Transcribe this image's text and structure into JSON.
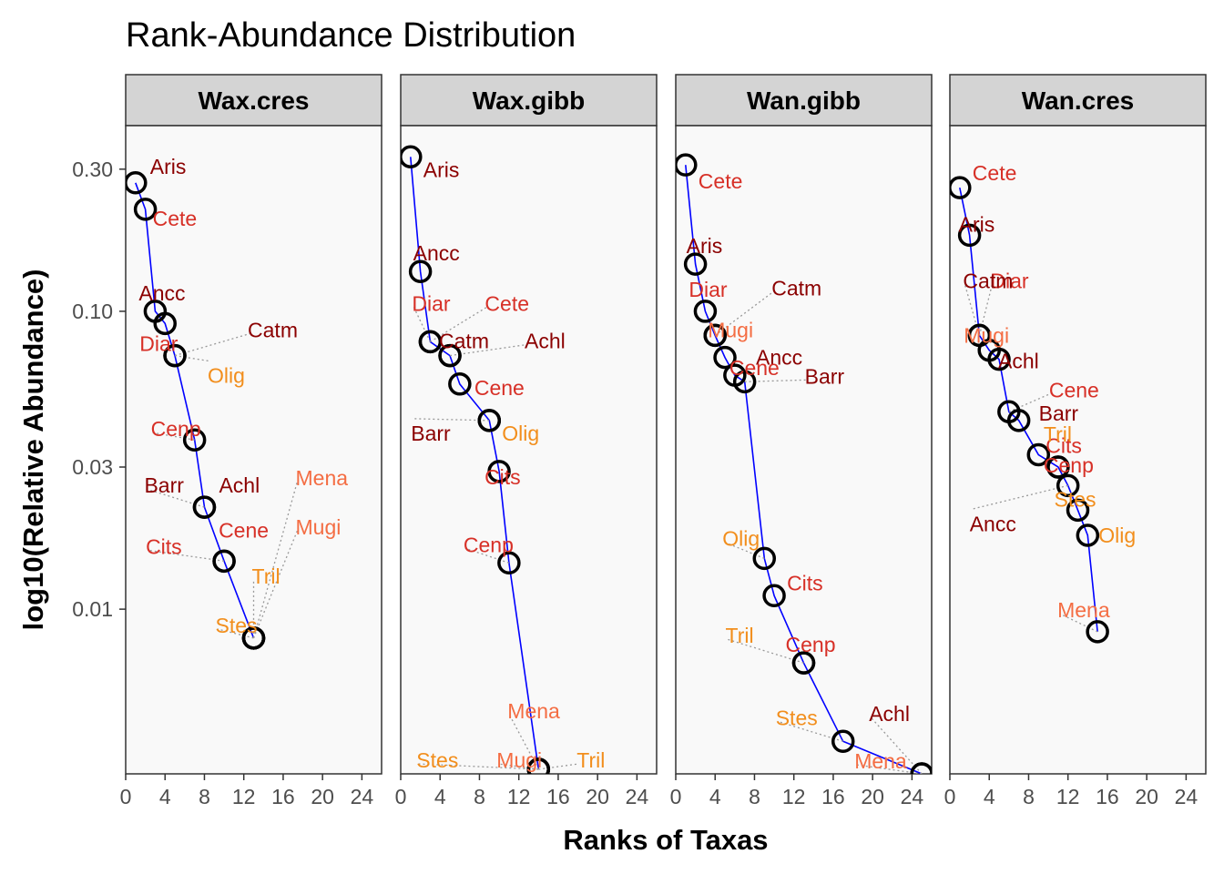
{
  "chart_data": {
    "type": "line",
    "title": "Rank-Abundance Distribution",
    "xlabel": "Ranks of Taxas",
    "ylabel": "log10(Relative Abundance)",
    "x_scale": "linear",
    "y_scale": "log10",
    "xlim": [
      0,
      26
    ],
    "ylim": [
      0.0028,
      0.42
    ],
    "x_ticks": [
      0,
      4,
      8,
      12,
      16,
      20,
      24
    ],
    "x_tick_labels": [
      "0",
      "4",
      "8",
      "12",
      "16",
      "20",
      "24"
    ],
    "y_ticks": [
      0.01,
      0.03,
      0.1,
      0.3
    ],
    "y_tick_labels": [
      "0.01",
      "0.03",
      "0.10",
      "0.30"
    ],
    "line_color": "#0000ff",
    "panel_background": "#f9f9f9",
    "strip_background": "#d4d4d4",
    "marker": "open-circle",
    "legend": "none",
    "label_colors": {
      "Aris": "#8b0000",
      "Ancc": "#8b0000",
      "Barr": "#8b0000",
      "Achl": "#8b0000",
      "Catm": "#8b0000",
      "Cete": "#d73027",
      "Diar": "#d73027",
      "Cene": "#d73027",
      "Cenp": "#d73027",
      "Cits": "#d73027",
      "Mena": "#f46d43",
      "Mugi": "#f46d43",
      "Olig": "#f28e1c",
      "Tril": "#f28e1c",
      "Stes": "#f28e1c"
    },
    "facets": [
      {
        "name": "Wax.cres",
        "points": [
          {
            "label": "Aris",
            "rank": 1,
            "abundance": 0.27
          },
          {
            "label": "Cete",
            "rank": 2,
            "abundance": 0.22
          },
          {
            "label": "Ancc",
            "rank": 3,
            "abundance": 0.1
          },
          {
            "label": "Diar",
            "rank": 4,
            "abundance": 0.091
          },
          {
            "label": "Catm",
            "rank": 5,
            "abundance": 0.071
          },
          {
            "label": "Olig",
            "rank": 5,
            "abundance": 0.071
          },
          {
            "label": "Cenp",
            "rank": 7,
            "abundance": 0.037
          },
          {
            "label": "Barr",
            "rank": 8,
            "abundance": 0.022
          },
          {
            "label": "Achl",
            "rank": 8,
            "abundance": 0.022
          },
          {
            "label": "Cits",
            "rank": 10,
            "abundance": 0.0145
          },
          {
            "label": "Cene",
            "rank": 10,
            "abundance": 0.0145
          },
          {
            "label": "Mena",
            "rank": 13,
            "abundance": 0.008
          },
          {
            "label": "Mugi",
            "rank": 13,
            "abundance": 0.008
          },
          {
            "label": "Tril",
            "rank": 13,
            "abundance": 0.008
          },
          {
            "label": "Stes",
            "rank": 13,
            "abundance": 0.008
          }
        ]
      },
      {
        "name": "Wax.gibb",
        "points": [
          {
            "label": "Aris",
            "rank": 1,
            "abundance": 0.33
          },
          {
            "label": "Ancc",
            "rank": 2,
            "abundance": 0.136
          },
          {
            "label": "Diar",
            "rank": 3,
            "abundance": 0.079
          },
          {
            "label": "Cete",
            "rank": 3,
            "abundance": 0.079
          },
          {
            "label": "Catm",
            "rank": 5,
            "abundance": 0.071
          },
          {
            "label": "Achl",
            "rank": 5,
            "abundance": 0.071
          },
          {
            "label": "Cene",
            "rank": 6,
            "abundance": 0.057
          },
          {
            "label": "Barr",
            "rank": 9,
            "abundance": 0.043
          },
          {
            "label": "Olig",
            "rank": 9,
            "abundance": 0.043
          },
          {
            "label": "Cits",
            "rank": 10,
            "abundance": 0.029
          },
          {
            "label": "Cenp",
            "rank": 11,
            "abundance": 0.0143
          },
          {
            "label": "Mena",
            "rank": 14,
            "abundance": 0.0029
          },
          {
            "label": "Stes",
            "rank": 14,
            "abundance": 0.0029
          },
          {
            "label": "Mugi",
            "rank": 14,
            "abundance": 0.0029
          },
          {
            "label": "Tril",
            "rank": 14,
            "abundance": 0.0029
          }
        ]
      },
      {
        "name": "Wan.gibb",
        "points": [
          {
            "label": "Cete",
            "rank": 1,
            "abundance": 0.31
          },
          {
            "label": "Aris",
            "rank": 2,
            "abundance": 0.144
          },
          {
            "label": "Diar",
            "rank": 3,
            "abundance": 0.1
          },
          {
            "label": "Catm",
            "rank": 4,
            "abundance": 0.083
          },
          {
            "label": "Mugi",
            "rank": 4,
            "abundance": 0.083
          },
          {
            "label": "Ancc",
            "rank": 5,
            "abundance": 0.07
          },
          {
            "label": "Cene",
            "rank": 6,
            "abundance": 0.061
          },
          {
            "label": "Barr",
            "rank": 7,
            "abundance": 0.058
          },
          {
            "label": "Olig",
            "rank": 9,
            "abundance": 0.0148
          },
          {
            "label": "Cits",
            "rank": 10,
            "abundance": 0.0111
          },
          {
            "label": "Tril",
            "rank": 13,
            "abundance": 0.0066
          },
          {
            "label": "Cenp",
            "rank": 13,
            "abundance": 0.0066
          },
          {
            "label": "Stes",
            "rank": 17,
            "abundance": 0.0036
          },
          {
            "label": "Achl",
            "rank": 25,
            "abundance": 0.0028
          },
          {
            "label": "Mena",
            "rank": 25,
            "abundance": 0.0028
          }
        ]
      },
      {
        "name": "Wan.cres",
        "points": [
          {
            "label": "Cete",
            "rank": 1,
            "abundance": 0.26
          },
          {
            "label": "Aris",
            "rank": 2,
            "abundance": 0.18
          },
          {
            "label": "Diar",
            "rank": 3,
            "abundance": 0.083
          },
          {
            "label": "Catm",
            "rank": 3,
            "abundance": 0.083
          },
          {
            "label": "Mugi",
            "rank": 4,
            "abundance": 0.074
          },
          {
            "label": "Achl",
            "rank": 5,
            "abundance": 0.069
          },
          {
            "label": "Cene",
            "rank": 6,
            "abundance": 0.046
          },
          {
            "label": "Barr",
            "rank": 7,
            "abundance": 0.043
          },
          {
            "label": "Cits",
            "rank": 9,
            "abundance": 0.033
          },
          {
            "label": "Tril",
            "rank": 11,
            "abundance": 0.03
          },
          {
            "label": "Cenp",
            "rank": 11,
            "abundance": 0.03
          },
          {
            "label": "Ancc",
            "rank": 12,
            "abundance": 0.026
          },
          {
            "label": "Stes",
            "rank": 13,
            "abundance": 0.0215
          },
          {
            "label": "Olig",
            "rank": 14,
            "abundance": 0.0177
          },
          {
            "label": "Mena",
            "rank": 15,
            "abundance": 0.0084
          }
        ]
      }
    ]
  }
}
